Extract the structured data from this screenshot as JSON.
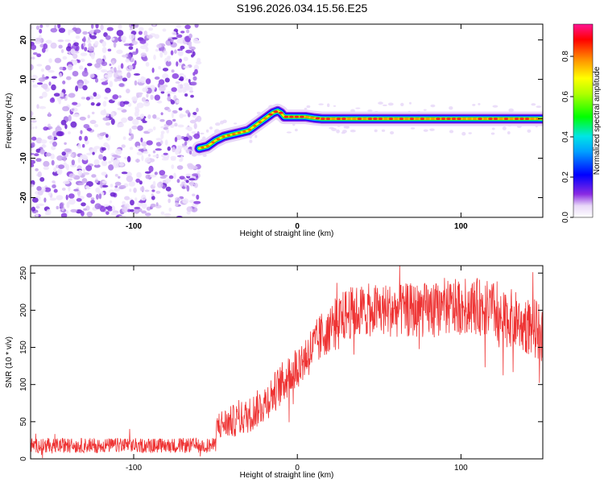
{
  "title": "S196.2026.034.15.56.E25",
  "chart_data": [
    {
      "type": "heatmap",
      "xlabel": "Height of straight line (km)",
      "ylabel": "Frequency (Hz)",
      "xlim": [
        -163,
        150
      ],
      "ylim": [
        -25,
        24
      ],
      "x_ticks": [
        -100,
        0,
        100
      ],
      "x_tick_labels": [
        "-100",
        "0",
        "100"
      ],
      "y_ticks": [
        -20,
        -10,
        0,
        10,
        20
      ],
      "y_tick_labels": [
        "-20",
        "-10",
        "0",
        "10",
        "20"
      ],
      "noise_region_x": [
        -163,
        -60
      ],
      "ridge": {
        "x": [
          -60,
          -55,
          -50,
          -45,
          -40,
          -35,
          -30,
          -25,
          -20,
          -15,
          -12,
          -10,
          -8,
          -5,
          0,
          5,
          10,
          15,
          20,
          50,
          100,
          150
        ],
        "y": [
          -7.5,
          -7,
          -5.5,
          -4.5,
          -4,
          -3.5,
          -3,
          -1.5,
          0,
          1.5,
          2,
          1.5,
          0.5,
          0.5,
          0.5,
          0.5,
          0.2,
          0,
          0,
          0,
          0,
          0
        ]
      },
      "colorbar": {
        "label": "Normalized spectral amplitude",
        "ticks": [
          "0.0",
          "0.2",
          "0.4",
          "0.6",
          "0.8"
        ],
        "tick_values": [
          0.0,
          0.2,
          0.4,
          0.6,
          0.8
        ],
        "range": [
          0,
          0.96
        ],
        "colors": [
          "#ffffff",
          "#8a2be2",
          "#0000ff",
          "#00e5ff",
          "#00ff00",
          "#ffff00",
          "#ff8c00",
          "#ff0000",
          "#ff1493"
        ]
      }
    },
    {
      "type": "line",
      "xlabel": "Height of straight line (km)",
      "ylabel": "SNR (10 * v/v)",
      "xlim": [
        -163,
        150
      ],
      "ylim": [
        0,
        260
      ],
      "x_ticks": [
        -100,
        0,
        100
      ],
      "x_tick_labels": [
        "-100",
        "0",
        "100"
      ],
      "y_ticks": [
        0,
        50,
        100,
        150,
        200,
        250
      ],
      "y_tick_labels": [
        "0",
        "50",
        "100",
        "150",
        "200",
        "250"
      ],
      "line_color": "#ee3333",
      "trend": {
        "x": [
          -163,
          -50,
          -49,
          -40,
          -30,
          -20,
          -10,
          0,
          10,
          20,
          25,
          30,
          40,
          60,
          80,
          100,
          110,
          120,
          125,
          130,
          140,
          150
        ],
        "y": [
          18,
          18,
          45,
          50,
          58,
          75,
          100,
          125,
          150,
          180,
          185,
          195,
          200,
          200,
          200,
          205,
          205,
          200,
          185,
          190,
          180,
          170
        ]
      },
      "noise_amplitude": [
        {
          "x": -163,
          "a": 10
        },
        {
          "x": -50,
          "a": 10
        },
        {
          "x": -49,
          "a": 20
        },
        {
          "x": 20,
          "a": 35
        },
        {
          "x": 150,
          "a": 40
        }
      ]
    }
  ]
}
